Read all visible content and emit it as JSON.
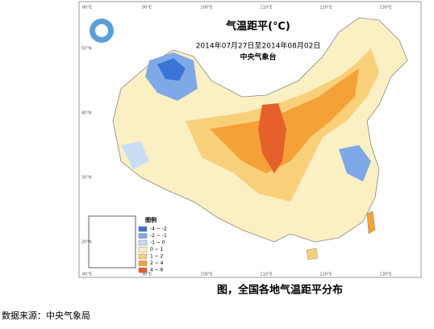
{
  "map": {
    "title": "气温距平(℃)",
    "period": "2014年07月27日至2014年08月02日",
    "issuer": "中央气象台",
    "lon_labels": [
      "80°E",
      "90°E",
      "100°E",
      "110°E",
      "120°E",
      "130°E"
    ],
    "lat_labels": [
      "50°N",
      "40°N",
      "30°N",
      "20°N"
    ],
    "legend": {
      "title": "图例",
      "items": [
        {
          "label": "-4 ~ -2",
          "color": "#3a74d6"
        },
        {
          "label": "-2 ~ -1",
          "color": "#7ea9e6"
        },
        {
          "label": "-1 ~ 0",
          "color": "#c9def4"
        },
        {
          "label": "0 ~ 1",
          "color": "#fbefc4"
        },
        {
          "label": "1 ~ 2",
          "color": "#f8d07a"
        },
        {
          "label": "2 ~ 4",
          "color": "#f4a238"
        },
        {
          "label": "4 ~ 6",
          "color": "#e5602a"
        }
      ]
    }
  },
  "caption": "图，全国各地气温距平分布",
  "source": "数据来源：中央气象局"
}
